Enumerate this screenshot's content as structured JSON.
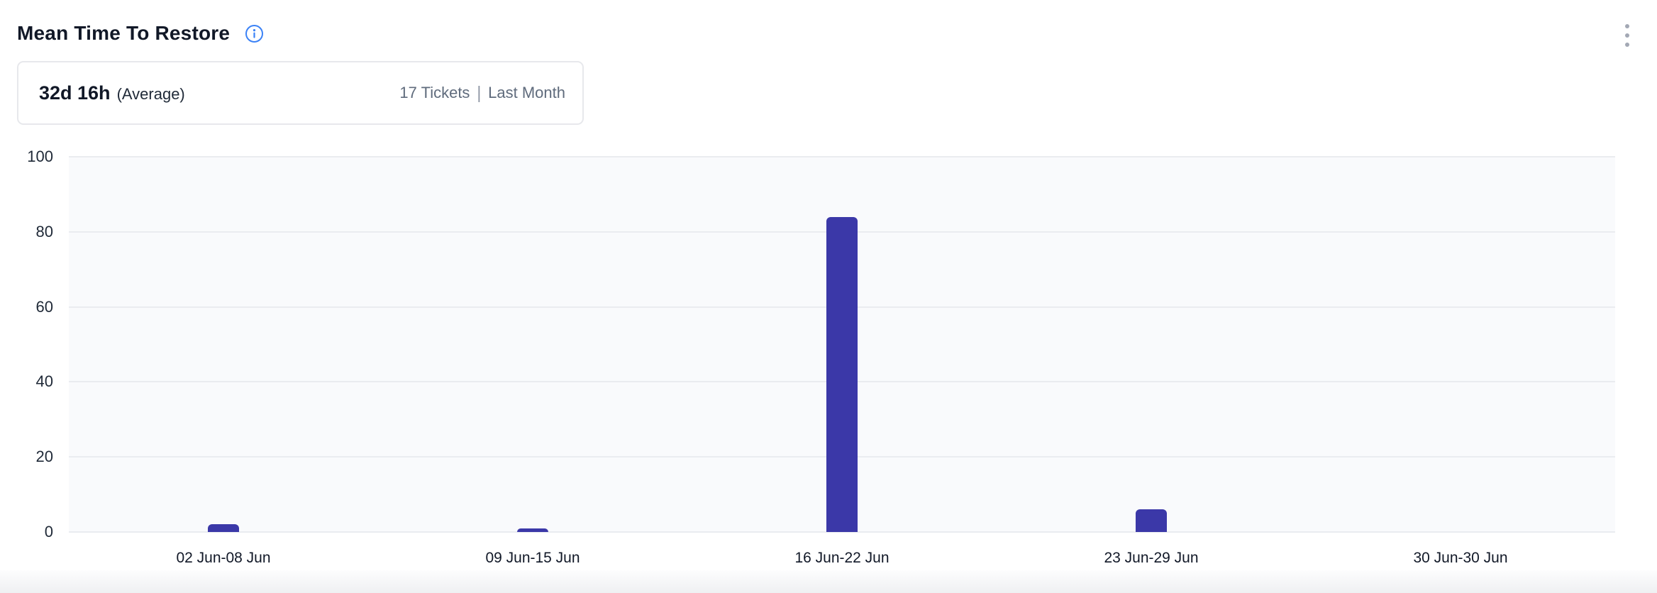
{
  "widget": {
    "title": "Mean Time To Restore"
  },
  "summary": {
    "value": "32d 16h",
    "value_suffix": "(Average)",
    "tickets": "17 Tickets",
    "separator": "|",
    "period": "Last Month"
  },
  "chart_data": {
    "type": "bar",
    "title": "Mean Time To Restore",
    "categories": [
      "02 Jun-08 Jun",
      "09 Jun-15 Jun",
      "16 Jun-22 Jun",
      "23 Jun-29 Jun",
      "30 Jun-30 Jun"
    ],
    "values": [
      2,
      1,
      84,
      6,
      0
    ],
    "xlabel": "",
    "ylabel": "",
    "ylim": [
      0,
      100
    ],
    "yticks": [
      0,
      20,
      40,
      60,
      80,
      100
    ],
    "grid": "horizontal",
    "legend": "none",
    "bar_color": "#3b38a8",
    "plot_background": "#f9fafc",
    "gridline_color": "#eaecf0"
  },
  "colors": {
    "bar": "#3b38a8",
    "info_accent": "#3b82f6",
    "text_dark": "#111827",
    "text_muted": "#5f6b7c",
    "card_border": "#e7e8ec",
    "grid": "#eaecf0",
    "plot_bg": "#f9fafc",
    "kebab_dots": "#a3a8b4"
  }
}
